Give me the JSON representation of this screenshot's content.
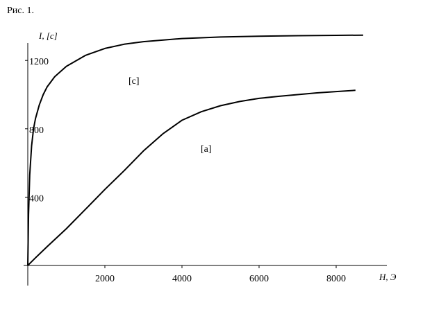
{
  "caption": "Рис. 1.",
  "chart_data": {
    "type": "line",
    "title": "",
    "xlabel": "H, Э",
    "ylabel": "I, [c]",
    "xlim": [
      0,
      9000
    ],
    "ylim": [
      0,
      1400
    ],
    "x_ticks": [
      2000,
      4000,
      6000,
      8000
    ],
    "y_ticks": [
      400,
      800,
      1200
    ],
    "grid": false,
    "series": [
      {
        "name": "[c]",
        "x": [
          0,
          20,
          50,
          100,
          150,
          200,
          300,
          400,
          500,
          700,
          1000,
          1500,
          2000,
          2500,
          3000,
          4000,
          5000,
          6000,
          7000,
          8000,
          8700
        ],
        "y": [
          0,
          300,
          530,
          700,
          800,
          860,
          940,
          1000,
          1045,
          1105,
          1165,
          1230,
          1270,
          1295,
          1310,
          1328,
          1337,
          1342,
          1345,
          1347,
          1348
        ]
      },
      {
        "name": "[a]",
        "x": [
          0,
          200,
          500,
          1000,
          1500,
          2000,
          2500,
          3000,
          3500,
          4000,
          4500,
          5000,
          5500,
          6000,
          6500,
          7000,
          7500,
          8000,
          8500
        ],
        "y": [
          0,
          45,
          110,
          215,
          330,
          445,
          555,
          670,
          770,
          850,
          900,
          935,
          960,
          978,
          990,
          1000,
          1010,
          1018,
          1025
        ]
      }
    ],
    "labels": [
      "[c]",
      "[a]"
    ]
  }
}
